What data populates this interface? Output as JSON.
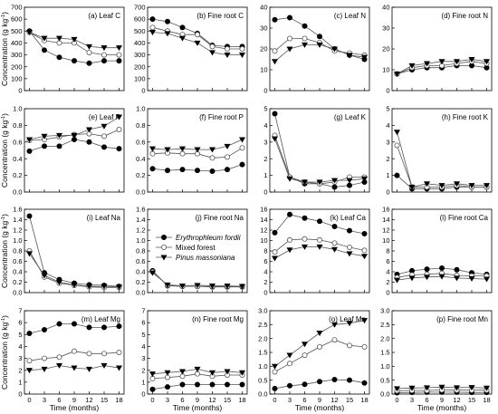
{
  "chart_data": {
    "type": "line",
    "x_label": "Time (months)",
    "y_label_gkg": "Concentration (g kg",
    "y_label_sup": "-1",
    "y_label_close": ")",
    "x": [
      0,
      3,
      6,
      9,
      12,
      15,
      18
    ],
    "x_ticks": [
      "0",
      "3",
      "6",
      "9",
      "12",
      "15",
      "18"
    ],
    "legend": [
      {
        "name": "Erythrophleum fordii",
        "marker": "circle-filled",
        "italic": true
      },
      {
        "name": "Mixed forest",
        "marker": "circle-open",
        "italic": false
      },
      {
        "name": "Pinus massoniana",
        "marker": "triangle-down-filled",
        "italic": true
      }
    ],
    "colors": {
      "filled": "#000000",
      "open_fill": "#ffffff",
      "open_stroke": "#555555",
      "line": "#555555"
    },
    "panels": [
      {
        "label": "(a)  Leaf  C",
        "ylim": [
          0,
          700
        ],
        "yticks": [
          "0",
          "100",
          "200",
          "300",
          "400",
          "500",
          "600",
          "700"
        ],
        "show_x_ticklabels": false,
        "series": [
          [
            500,
            340,
            280,
            250,
            230,
            250,
            250
          ],
          [
            490,
            420,
            400,
            400,
            320,
            300,
            300
          ],
          [
            490,
            440,
            440,
            430,
            370,
            360,
            360
          ]
        ]
      },
      {
        "label": "(b)  Fine root  C",
        "ylim": [
          0,
          700
        ],
        "yticks": [
          "0",
          "100",
          "200",
          "300",
          "400",
          "500",
          "600",
          "700"
        ],
        "show_x_ticklabels": false,
        "series": [
          [
            600,
            580,
            530,
            480,
            380,
            370,
            370
          ],
          [
            530,
            500,
            470,
            470,
            370,
            350,
            350
          ],
          [
            490,
            480,
            440,
            400,
            320,
            300,
            300
          ]
        ]
      },
      {
        "label": "(c)  Leaf  N",
        "ylim": [
          0,
          40
        ],
        "yticks": [
          "0",
          "10",
          "20",
          "30",
          "40"
        ],
        "show_x_ticklabels": false,
        "series": [
          [
            34,
            35,
            31,
            26,
            20,
            17,
            15
          ],
          [
            19,
            25,
            25,
            23,
            19,
            18,
            17
          ],
          [
            14,
            20,
            22,
            22,
            20,
            17,
            16
          ]
        ]
      },
      {
        "label": "(d)  Fine root  N",
        "ylim": [
          0,
          40
        ],
        "yticks": [
          "0",
          "10",
          "20",
          "30",
          "40"
        ],
        "show_x_ticklabels": false,
        "series": [
          [
            8,
            10,
            11,
            11,
            12,
            12,
            11
          ],
          [
            8,
            11,
            12,
            12,
            13,
            14,
            13
          ],
          [
            8,
            12,
            13,
            14,
            14,
            15,
            14
          ]
        ]
      },
      {
        "label": "(e)  Leaf  P",
        "ylim": [
          0,
          1.0
        ],
        "yticks": [
          "0.0",
          "0.2",
          "0.4",
          "0.6",
          "0.8",
          "1.0"
        ],
        "show_x_ticklabels": false,
        "series": [
          [
            0.49,
            0.55,
            0.55,
            0.63,
            0.6,
            0.54,
            0.52
          ],
          [
            0.62,
            0.63,
            0.66,
            0.69,
            0.7,
            0.67,
            0.75
          ],
          [
            0.63,
            0.67,
            0.68,
            0.68,
            0.75,
            0.79,
            0.9
          ]
        ]
      },
      {
        "label": "(f)  Fine root  P",
        "ylim": [
          0,
          1.0
        ],
        "yticks": [
          "0.0",
          "0.2",
          "0.4",
          "0.6",
          "0.8",
          "1.0"
        ],
        "show_x_ticklabels": false,
        "series": [
          [
            0.28,
            0.26,
            0.27,
            0.26,
            0.25,
            0.27,
            0.33
          ],
          [
            0.46,
            0.47,
            0.46,
            0.46,
            0.41,
            0.42,
            0.53
          ],
          [
            0.52,
            0.51,
            0.52,
            0.51,
            0.51,
            0.55,
            0.63
          ]
        ]
      },
      {
        "label": "(g)  Leaf  K",
        "ylim": [
          0,
          5
        ],
        "yticks": [
          "0",
          "1",
          "2",
          "3",
          "4",
          "5"
        ],
        "show_x_ticklabels": false,
        "series": [
          [
            4.7,
            0.9,
            0.5,
            0.5,
            0.3,
            0.4,
            0.6
          ],
          [
            3.4,
            0.9,
            0.6,
            0.5,
            0.6,
            0.9,
            0.9
          ],
          [
            3.2,
            0.8,
            0.6,
            0.6,
            0.7,
            0.7,
            0.8
          ]
        ]
      },
      {
        "label": "(h)  Fine root  K",
        "ylim": [
          0,
          5
        ],
        "yticks": [
          "0",
          "1",
          "2",
          "3",
          "4",
          "5"
        ],
        "show_x_ticklabels": false,
        "series": [
          [
            1.0,
            0.2,
            0.2,
            0.2,
            0.3,
            0.3,
            0.3
          ],
          [
            2.8,
            0.3,
            0.3,
            0.3,
            0.4,
            0.3,
            0.3
          ],
          [
            3.6,
            0.3,
            0.5,
            0.4,
            0.5,
            0.4,
            0.4
          ]
        ]
      },
      {
        "label": "(i)  Leaf  Na",
        "ylim": [
          0,
          1.6
        ],
        "yticks": [
          "0.0",
          "0.2",
          "0.4",
          "0.6",
          "0.8",
          "1.0",
          "1.2",
          "1.4",
          "1.6"
        ],
        "show_x_ticklabels": false,
        "series": [
          [
            1.47,
            0.38,
            0.25,
            0.18,
            0.15,
            0.14,
            0.12
          ],
          [
            0.8,
            0.3,
            0.18,
            0.14,
            0.11,
            0.1,
            0.1
          ],
          [
            0.75,
            0.33,
            0.2,
            0.15,
            0.12,
            0.12,
            0.11
          ]
        ]
      },
      {
        "label": "(j)  Fine root  Na",
        "ylim": [
          0,
          1.6
        ],
        "yticks": [
          "0.0",
          "0.2",
          "0.4",
          "0.6",
          "0.8",
          "1.0",
          "1.2",
          "1.4",
          "1.6"
        ],
        "show_x_ticklabels": false,
        "series": [
          [
            0.42,
            0.13,
            0.12,
            0.12,
            0.11,
            0.11,
            0.11
          ],
          [
            0.4,
            0.14,
            0.12,
            0.12,
            0.12,
            0.12,
            0.12
          ],
          [
            0.38,
            0.15,
            0.13,
            0.14,
            0.13,
            0.13,
            0.12
          ]
        ]
      },
      {
        "label": "(k)  Leaf  Ca",
        "ylim": [
          0,
          16
        ],
        "yticks": [
          "0",
          "2",
          "4",
          "6",
          "8",
          "10",
          "12",
          "14",
          "16"
        ],
        "show_x_ticklabels": false,
        "series": [
          [
            11.5,
            15,
            14.3,
            13.7,
            12.7,
            11.9,
            11.3
          ],
          [
            7.8,
            10.1,
            10.3,
            10.1,
            9.5,
            8.7,
            8.1
          ],
          [
            6.6,
            8.2,
            8.8,
            8.8,
            8.3,
            7.5,
            7
          ]
        ]
      },
      {
        "label": "(l)  Fine root  Ca",
        "ylim": [
          0,
          16
        ],
        "yticks": [
          "0",
          "2",
          "4",
          "6",
          "8",
          "10",
          "12",
          "14",
          "16"
        ],
        "show_x_ticklabels": false,
        "series": [
          [
            3.5,
            4.2,
            4.5,
            4.7,
            4.4,
            3.8,
            3.5
          ],
          [
            2.9,
            3.4,
            3.5,
            3.7,
            3.3,
            3.2,
            3.2
          ],
          [
            2.4,
            2.8,
            3.0,
            3.1,
            2.8,
            2.7,
            2.6
          ]
        ]
      },
      {
        "label": "(m)  Leaf  Mg",
        "ylim": [
          0,
          7
        ],
        "yticks": [
          "0",
          "1",
          "2",
          "3",
          "4",
          "5",
          "6",
          "7"
        ],
        "show_x_ticklabels": true,
        "series": [
          [
            5.1,
            5.4,
            5.9,
            5.9,
            5.6,
            5.6,
            5.7
          ],
          [
            2.8,
            3.0,
            3.1,
            3.6,
            3.4,
            3.4,
            3.5
          ],
          [
            2.0,
            2.1,
            2.4,
            2.2,
            2.1,
            2.4,
            2.2
          ]
        ]
      },
      {
        "label": "(n)  Fine root  Mg",
        "ylim": [
          0,
          7
        ],
        "yticks": [
          "0",
          "1",
          "2",
          "3",
          "4",
          "5",
          "6",
          "7"
        ],
        "show_x_ticklabels": true,
        "series": [
          [
            0.4,
            0.6,
            0.8,
            0.8,
            0.8,
            0.8,
            0.8
          ],
          [
            1.3,
            1.4,
            1.5,
            1.7,
            1.5,
            1.6,
            1.6
          ],
          [
            1.7,
            1.8,
            1.9,
            2.1,
            1.8,
            1.9,
            1.8
          ]
        ]
      },
      {
        "label": "(o)  Leaf  Mn",
        "ylim": [
          0,
          3.0
        ],
        "yticks": [
          "0.0",
          "0.5",
          "1.0",
          "1.5",
          "2.0",
          "2.5",
          "3.0"
        ],
        "show_x_ticklabels": true,
        "series": [
          [
            0.2,
            0.3,
            0.35,
            0.45,
            0.52,
            0.5,
            0.4
          ],
          [
            0.8,
            1.1,
            1.4,
            1.7,
            1.95,
            1.75,
            1.7
          ],
          [
            1.0,
            1.4,
            1.8,
            2.2,
            2.5,
            2.55,
            2.65
          ]
        ]
      },
      {
        "label": "(p)  Fine root  Mn",
        "ylim": [
          0,
          3.0
        ],
        "yticks": [
          "0.0",
          "0.5",
          "1.0",
          "1.5",
          "2.0",
          "2.5",
          "3.0"
        ],
        "show_x_ticklabels": true,
        "series": [
          [
            0.05,
            0.06,
            0.07,
            0.07,
            0.07,
            0.06,
            0.06
          ],
          [
            0.12,
            0.13,
            0.13,
            0.15,
            0.14,
            0.14,
            0.14
          ],
          [
            0.2,
            0.22,
            0.23,
            0.25,
            0.23,
            0.24,
            0.22
          ]
        ]
      }
    ]
  }
}
